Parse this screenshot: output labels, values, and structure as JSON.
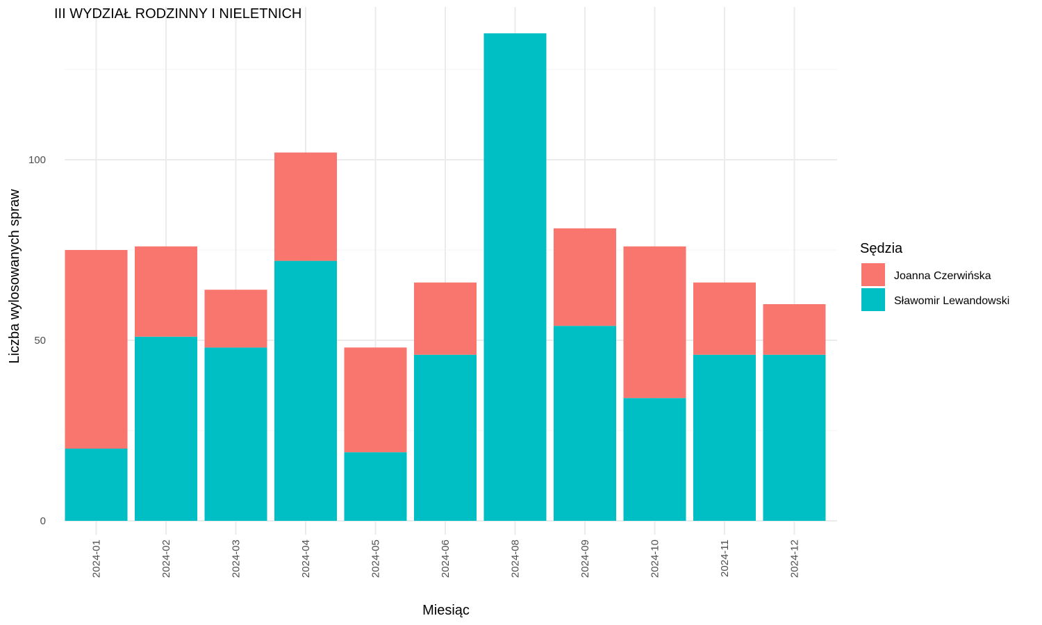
{
  "chart_data": {
    "type": "bar",
    "stacked": true,
    "title": "III WYDZIAŁ RODZINNY I NIELETNICH",
    "xlabel": "Miesiąc",
    "ylabel": "Liczba wylosowanych spraw",
    "categories": [
      "2024-01",
      "2024-02",
      "2024-03",
      "2024-04",
      "2024-05",
      "2024-06",
      "2024-08",
      "2024-09",
      "2024-10",
      "2024-11",
      "2024-12"
    ],
    "series": [
      {
        "name": "Sławomir Lewandowski",
        "color": "#00BFC4",
        "values": [
          20,
          51,
          48,
          72,
          19,
          46,
          135,
          54,
          34,
          46,
          46
        ]
      },
      {
        "name": "Joanna Czerwińska",
        "color": "#F8766D",
        "values": [
          55,
          25,
          16,
          30,
          29,
          20,
          0,
          27,
          42,
          20,
          14
        ]
      }
    ],
    "yticks": [
      0,
      50,
      100
    ],
    "ylim": [
      0,
      142
    ],
    "grid": true,
    "legend": {
      "title": "Sędzia",
      "position": "right",
      "entries": [
        {
          "label": "Joanna Czerwińska",
          "color": "#F8766D"
        },
        {
          "label": "Sławomir Lewandowski",
          "color": "#00BFC4"
        }
      ]
    }
  }
}
